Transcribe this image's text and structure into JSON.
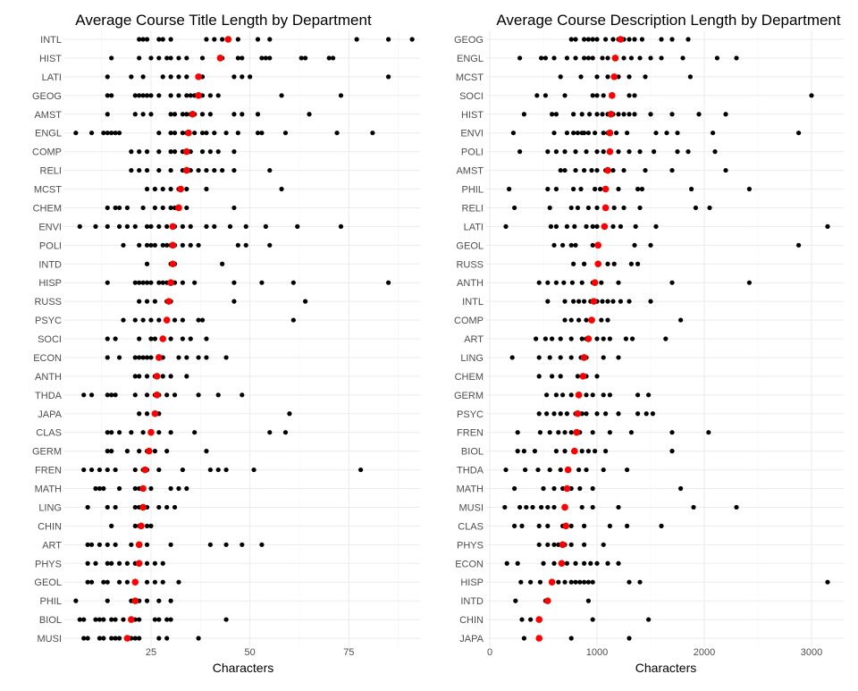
{
  "chart_data": [
    {
      "type": "scatter",
      "title": "Average Course Title Length by Department",
      "xlabel": "Characters",
      "ylabel": "",
      "xlim": [
        4,
        93
      ],
      "xticks": [
        25,
        50,
        75
      ],
      "grid": true,
      "point_color": "#000000",
      "mean_color": "#ff0000",
      "categories": [
        "INTL",
        "HIST",
        "LATI",
        "GEOG",
        "AMST",
        "ENGL",
        "COMP",
        "RELI",
        "MCST",
        "CHEM",
        "ENVI",
        "POLI",
        "INTD",
        "HISP",
        "RUSS",
        "PSYC",
        "SOCI",
        "ECON",
        "ANTH",
        "THDA",
        "JAPA",
        "CLAS",
        "GERM",
        "FREN",
        "MATH",
        "LING",
        "CHIN",
        "ART",
        "PHYS",
        "GEOL",
        "PHIL",
        "BIOL",
        "MUSI"
      ],
      "means": [
        44.5,
        42.5,
        37,
        37,
        35.5,
        34.5,
        34,
        34,
        32.5,
        32,
        30.5,
        30.5,
        30.5,
        30,
        29.5,
        29,
        28,
        27,
        26.5,
        26.5,
        26,
        25,
        24.5,
        23.5,
        23,
        23,
        22.5,
        22,
        22,
        21,
        21,
        20,
        19
      ],
      "points": [
        [
          22,
          23,
          24,
          27,
          28,
          30,
          39,
          41,
          43,
          47,
          52,
          55,
          77,
          85,
          91
        ],
        [
          15,
          22,
          25,
          27,
          29,
          30,
          32,
          34,
          38,
          43,
          47,
          48,
          53,
          54,
          55,
          63,
          64,
          70,
          71
        ],
        [
          14,
          20,
          23,
          28,
          30,
          32,
          34,
          38,
          46,
          48,
          50,
          85
        ],
        [
          14,
          15,
          21,
          22,
          23,
          24,
          25,
          27,
          30,
          32,
          34,
          35,
          36,
          38,
          40,
          42,
          58,
          73
        ],
        [
          14,
          21,
          23,
          25,
          30,
          31,
          33,
          34,
          35,
          36,
          38,
          40,
          46,
          48,
          52,
          65
        ],
        [
          6,
          10,
          13,
          14,
          15,
          16,
          17,
          27,
          30,
          31,
          33,
          34,
          36,
          38,
          39,
          41,
          44,
          47,
          52,
          53,
          59,
          72,
          81
        ],
        [
          20,
          22,
          24,
          27,
          30,
          31,
          33,
          35,
          38,
          40,
          42,
          46
        ],
        [
          20,
          22,
          24,
          27,
          30,
          33,
          35,
          37,
          39,
          41,
          43,
          46,
          55
        ],
        [
          24,
          26,
          28,
          30,
          32,
          34,
          39,
          58
        ],
        [
          14,
          16,
          17,
          19,
          23,
          26,
          28,
          30,
          31,
          32,
          34,
          46
        ],
        [
          7,
          11,
          14,
          17,
          19,
          21,
          24,
          25,
          27,
          29,
          31,
          33,
          35,
          39,
          41,
          45,
          49,
          54,
          62,
          73
        ],
        [
          18,
          22,
          24,
          25,
          26,
          28,
          29,
          30,
          31,
          33,
          35,
          37,
          47,
          49,
          55
        ],
        [
          24,
          30,
          31,
          43
        ],
        [
          14,
          21,
          22,
          23,
          24,
          25,
          27,
          28,
          29,
          31,
          33,
          36,
          46,
          53,
          61,
          85
        ],
        [
          22,
          24,
          26,
          29,
          30,
          46,
          64
        ],
        [
          18,
          21,
          23,
          25,
          27,
          29,
          31,
          33,
          37,
          38,
          61
        ],
        [
          14,
          16,
          22,
          25,
          26,
          28,
          30,
          33,
          35,
          39
        ],
        [
          14,
          17,
          21,
          22,
          23,
          24,
          25,
          27,
          28,
          32,
          34,
          37,
          39,
          44
        ],
        [
          21,
          22,
          24,
          26,
          28,
          30,
          34
        ],
        [
          8,
          10,
          14,
          15,
          16,
          21,
          24,
          26,
          27,
          29,
          31,
          37,
          42,
          48
        ],
        [
          22,
          24,
          26,
          27,
          60
        ],
        [
          14,
          15,
          17,
          20,
          23,
          25,
          27,
          30,
          36,
          55,
          59
        ],
        [
          14,
          15,
          19,
          22,
          24,
          26,
          29,
          39
        ],
        [
          8,
          10,
          12,
          14,
          16,
          21,
          23,
          24,
          27,
          33,
          40,
          42,
          44,
          51,
          78
        ],
        [
          11,
          12,
          13,
          17,
          21,
          22,
          23,
          25,
          30,
          32,
          34
        ],
        [
          9,
          14,
          16,
          21,
          22,
          24,
          27,
          29,
          31
        ],
        [
          15,
          21,
          22,
          24,
          25
        ],
        [
          9,
          10,
          12,
          14,
          16,
          20,
          22,
          24,
          30,
          40,
          44,
          48,
          53
        ],
        [
          9,
          11,
          14,
          15,
          17,
          19,
          21,
          24,
          26,
          28
        ],
        [
          9,
          10,
          13,
          14,
          17,
          19,
          21,
          24,
          26,
          28,
          32
        ],
        [
          6,
          14,
          20,
          22,
          24,
          27,
          30
        ],
        [
          7,
          8,
          11,
          12,
          13,
          15,
          16,
          18,
          20,
          21,
          22,
          26,
          27,
          29,
          30,
          44
        ],
        [
          8,
          9,
          12,
          13,
          15,
          16,
          17,
          19,
          20,
          21,
          22,
          27,
          29,
          37
        ]
      ]
    },
    {
      "type": "scatter",
      "title": "Average Course Description Length by Department",
      "xlabel": "Characters",
      "ylabel": "",
      "xlim": [
        0,
        3300
      ],
      "xticks": [
        0,
        1000,
        2000,
        3000
      ],
      "grid": true,
      "point_color": "#000000",
      "mean_color": "#ff0000",
      "categories": [
        "GEOG",
        "ENGL",
        "MCST",
        "SOCI",
        "HIST",
        "ENVI",
        "POLI",
        "AMST",
        "PHIL",
        "RELI",
        "LATI",
        "GEOL",
        "RUSS",
        "ANTH",
        "INTL",
        "COMP",
        "ART",
        "LING",
        "CHEM",
        "GERM",
        "PSYC",
        "FREN",
        "BIOL",
        "THDA",
        "MATH",
        "MUSI",
        "CLAS",
        "PHYS",
        "ECON",
        "HISP",
        "INTD",
        "CHIN",
        "JAPA"
      ],
      "means": [
        1220,
        1170,
        1160,
        1140,
        1130,
        1120,
        1120,
        1100,
        1080,
        1080,
        1070,
        1010,
        1010,
        980,
        970,
        950,
        920,
        880,
        870,
        830,
        820,
        810,
        790,
        730,
        720,
        700,
        710,
        680,
        670,
        580,
        540,
        460,
        460
      ],
      "points": [
        [
          760,
          800,
          880,
          920,
          960,
          1000,
          1080,
          1150,
          1200,
          1250,
          1300,
          1350,
          1420,
          1600,
          1700,
          1850
        ],
        [
          280,
          480,
          520,
          600,
          720,
          800,
          880,
          920,
          960,
          1050,
          1100,
          1180,
          1250,
          1320,
          1400,
          1500,
          1600,
          1800,
          2120,
          2300
        ],
        [
          660,
          850,
          1000,
          1100,
          1200,
          1300,
          1450,
          1870
        ],
        [
          440,
          520,
          700,
          960,
          1000,
          1060,
          1300,
          1350,
          3000
        ],
        [
          320,
          580,
          620,
          780,
          860,
          930,
          1000,
          1050,
          1100,
          1150,
          1200,
          1250,
          1300,
          1350,
          1500,
          1700,
          1950,
          2200
        ],
        [
          220,
          600,
          720,
          780,
          820,
          860,
          880,
          920,
          980,
          1060,
          1100,
          1180,
          1280,
          1550,
          1650,
          1750,
          2080,
          2880
        ],
        [
          280,
          540,
          620,
          700,
          800,
          900,
          1000,
          1060,
          1120,
          1200,
          1300,
          1400,
          1530,
          1750,
          1850,
          2100
        ],
        [
          660,
          700,
          800,
          880,
          950,
          1000,
          1080,
          1150,
          1250,
          1450,
          1700,
          2200
        ],
        [
          180,
          540,
          620,
          780,
          850,
          980,
          1030,
          1080,
          1200,
          1380,
          1420,
          1880,
          2420
        ],
        [
          230,
          560,
          760,
          820,
          920,
          1000,
          1080,
          1160,
          1250,
          1400,
          1920,
          2050
        ],
        [
          150,
          570,
          620,
          720,
          790,
          900,
          960,
          1000,
          1060,
          1150,
          1220,
          1360,
          1550,
          3150
        ],
        [
          600,
          680,
          760,
          800,
          960,
          1010,
          1350,
          1500,
          2880
        ],
        [
          780,
          880,
          1010,
          1100,
          1160,
          1320,
          1380
        ],
        [
          460,
          540,
          620,
          690,
          770,
          860,
          960,
          1040,
          1200,
          1700,
          2420
        ],
        [
          540,
          700,
          780,
          830,
          880,
          940,
          1000,
          1050,
          1100,
          1150,
          1220,
          1300,
          1500
        ],
        [
          700,
          760,
          830,
          900,
          960,
          1040,
          1100,
          1780
        ],
        [
          430,
          520,
          580,
          660,
          760,
          860,
          900,
          1000,
          1060,
          1120,
          1270,
          1330,
          1640
        ],
        [
          210,
          460,
          560,
          660,
          760,
          850,
          900,
          1060,
          1200
        ],
        [
          460,
          580,
          660,
          820,
          860,
          900,
          1000
        ],
        [
          530,
          620,
          680,
          760,
          820,
          900,
          960,
          1060,
          1120,
          1380,
          1480
        ],
        [
          460,
          530,
          600,
          660,
          720,
          800,
          860,
          900,
          1000,
          1080,
          1200,
          1380,
          1460,
          1520
        ],
        [
          260,
          470,
          560,
          640,
          700,
          760,
          840,
          960,
          1120,
          1320,
          1700,
          2040
        ],
        [
          260,
          320,
          420,
          620,
          700,
          780,
          860,
          920,
          980,
          1080,
          1700
        ],
        [
          150,
          330,
          450,
          560,
          660,
          730,
          830,
          900,
          1060,
          1280
        ],
        [
          230,
          500,
          600,
          680,
          720,
          760,
          840,
          960,
          1780
        ],
        [
          140,
          280,
          340,
          400,
          480,
          540,
          600,
          700,
          860,
          960,
          1200,
          1900,
          2300
        ],
        [
          230,
          300,
          460,
          540,
          680,
          760,
          880,
          1120,
          1280,
          1600
        ],
        [
          460,
          540,
          600,
          640,
          700,
          760,
          880,
          1060
        ],
        [
          160,
          260,
          500,
          600,
          680,
          720,
          800,
          880,
          940,
          1000,
          1100,
          1200
        ],
        [
          290,
          380,
          470,
          640,
          700,
          760,
          800,
          840,
          880,
          920,
          960,
          1300,
          1400,
          3150
        ],
        [
          240,
          520,
          540,
          920
        ],
        [
          300,
          380,
          460,
          960,
          1480
        ],
        [
          320,
          460,
          760,
          1300
        ]
      ]
    }
  ]
}
